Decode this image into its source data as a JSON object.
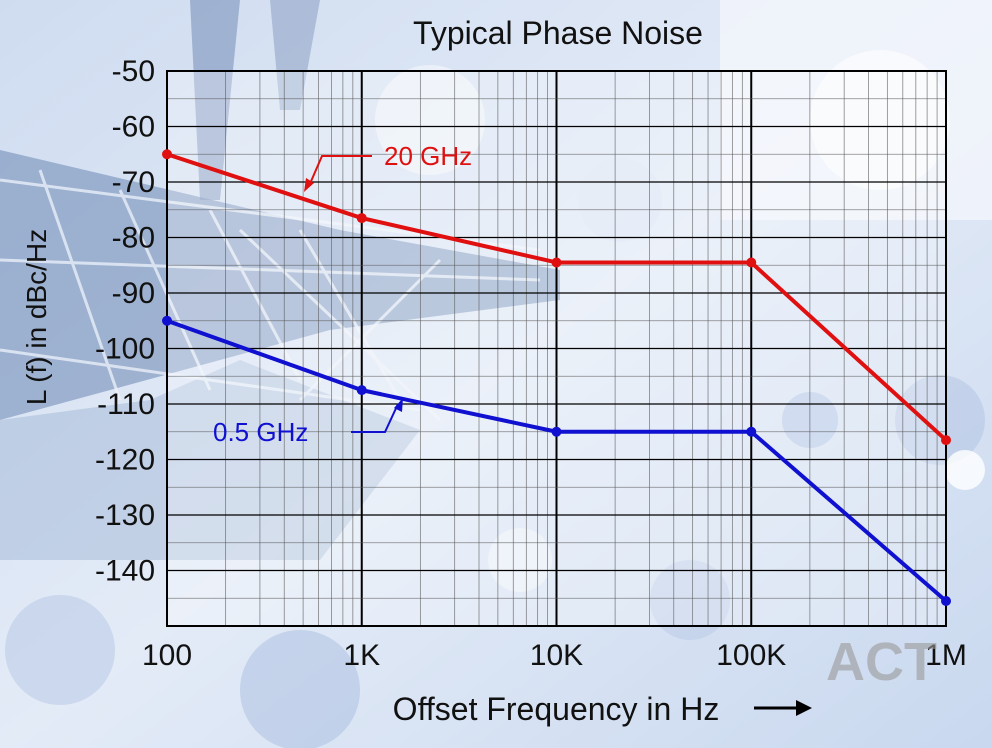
{
  "chart_data": {
    "type": "line",
    "title": "Typical Phase Noise",
    "xlabel": "Offset Frequency in Hz",
    "ylabel": "L (f) in dBc/Hz",
    "x_scale": "log",
    "x_ticks": [
      {
        "value": 100,
        "label": "100"
      },
      {
        "value": 1000,
        "label": "1K"
      },
      {
        "value": 10000,
        "label": "10K"
      },
      {
        "value": 100000,
        "label": "100K"
      },
      {
        "value": 1000000,
        "label": "1M"
      }
    ],
    "y_ticks": [
      -50,
      -60,
      -70,
      -80,
      -90,
      -100,
      -110,
      -120,
      -130,
      -140
    ],
    "xlim": [
      100,
      1000000
    ],
    "ylim": [
      -150,
      -50
    ],
    "grid": true,
    "series": [
      {
        "name": "20 GHz",
        "color": "#e01010",
        "points": [
          {
            "x": 100,
            "y": -65
          },
          {
            "x": 1000,
            "y": -76.5
          },
          {
            "x": 10000,
            "y": -84.5
          },
          {
            "x": 100000,
            "y": -84.5
          },
          {
            "x": 1000000,
            "y": -116.5
          }
        ]
      },
      {
        "name": "0.5 GHz",
        "color": "#1010d0",
        "points": [
          {
            "x": 100,
            "y": -95
          },
          {
            "x": 1000,
            "y": -107.5
          },
          {
            "x": 10000,
            "y": -115
          },
          {
            "x": 100000,
            "y": -115
          },
          {
            "x": 1000000,
            "y": -145.5
          }
        ]
      }
    ]
  },
  "watermark": "ACT"
}
